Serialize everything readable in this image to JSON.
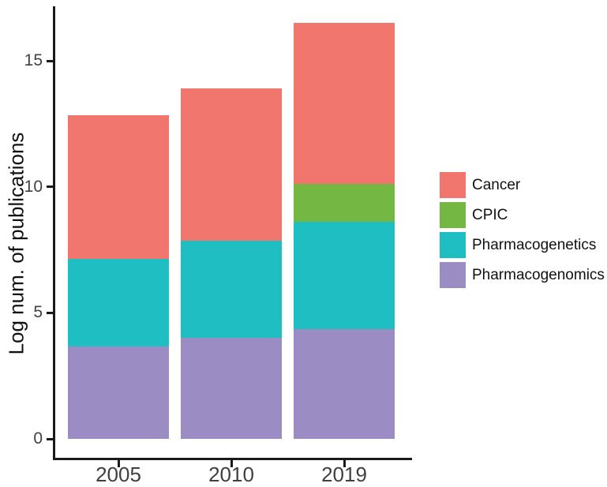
{
  "figure": {
    "y_axis_title": "Log num. of publications"
  },
  "chart_data": {
    "type": "bar",
    "stacked": true,
    "title": "",
    "xlabel": "",
    "ylabel": "Log num. of publications",
    "categories": [
      "2005",
      "2010",
      "2019"
    ],
    "series": [
      {
        "name": "Pharmacogenomics",
        "color": "#9B8CC3",
        "values": [
          3.65,
          4.0,
          4.35
        ]
      },
      {
        "name": "Pharmacogenetics",
        "color": "#1EBEC3",
        "values": [
          3.5,
          3.85,
          4.25
        ]
      },
      {
        "name": "CPIC",
        "color": "#74B843",
        "values": [
          0,
          0,
          1.5
        ]
      },
      {
        "name": "Cancer",
        "color": "#F0766E",
        "values": [
          5.7,
          6.05,
          6.4
        ]
      }
    ],
    "stack_totals": [
      12.85,
      13.9,
      16.5
    ],
    "ylim": [
      0,
      17.2
    ],
    "yticks": [
      0,
      5,
      10,
      15
    ],
    "grid": false,
    "legend_position": "right",
    "legend": [
      "Cancer",
      "CPIC",
      "Pharmacogenetics",
      "Pharmacogenomics"
    ],
    "axis_color": "#1a1a1a",
    "tick_label_color": "#404040"
  }
}
